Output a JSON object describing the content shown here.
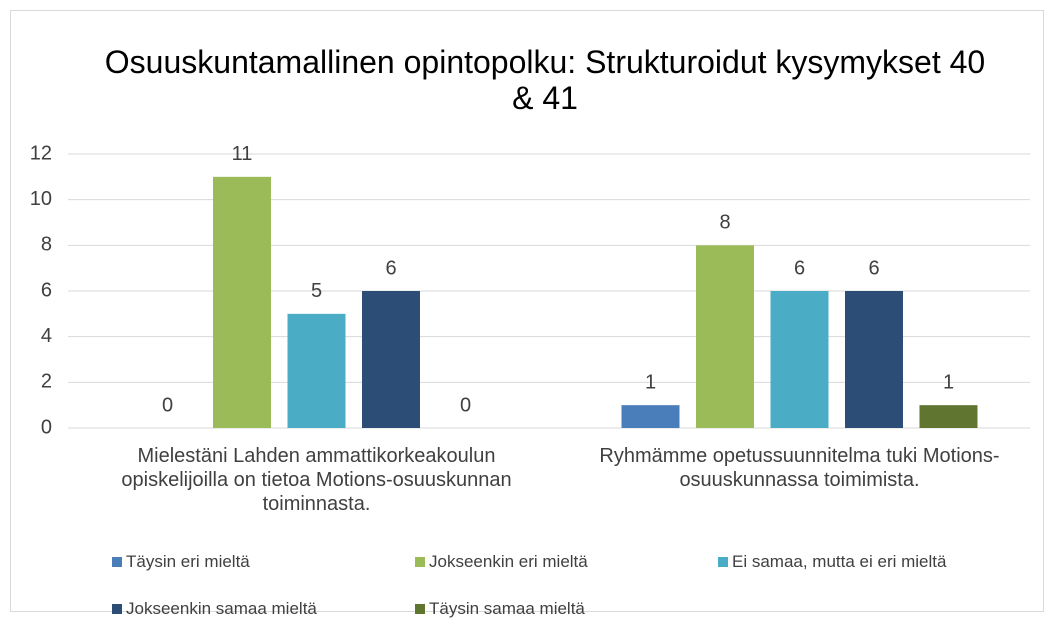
{
  "chart_data": {
    "type": "bar",
    "title": "Osuuskuntamallinen opintopolku: Strukturoidut kysymykset 40 & 41",
    "categories": [
      "Mielestäni Lahden ammattikorkeakoulun opiskelijoilla on tietoa Motions-osuuskunnan toiminnasta.",
      "Ryhmämme opetussuunnitelma tuki Motions-osuuskunnassa toimimista."
    ],
    "series": [
      {
        "name": "Täysin eri mieltä",
        "color": "#4a7ebb",
        "values": [
          0,
          1
        ]
      },
      {
        "name": "Jokseenkin eri mieltä",
        "color": "#9bbb59",
        "values": [
          11,
          8
        ]
      },
      {
        "name": "Ei samaa, mutta ei eri mieltä",
        "color": "#4bacc6",
        "values": [
          5,
          6
        ]
      },
      {
        "name": "Jokseenkin samaa mieltä",
        "color": "#2c4d75",
        "values": [
          6,
          6
        ]
      },
      {
        "name": "Täysin samaa mieltä",
        "color": "#5f7530",
        "values": [
          0,
          1
        ]
      }
    ],
    "ylim": [
      0,
      12
    ],
    "yticks": [
      0,
      2,
      4,
      6,
      8,
      10,
      12
    ],
    "grid": true,
    "legend": "bottom"
  }
}
